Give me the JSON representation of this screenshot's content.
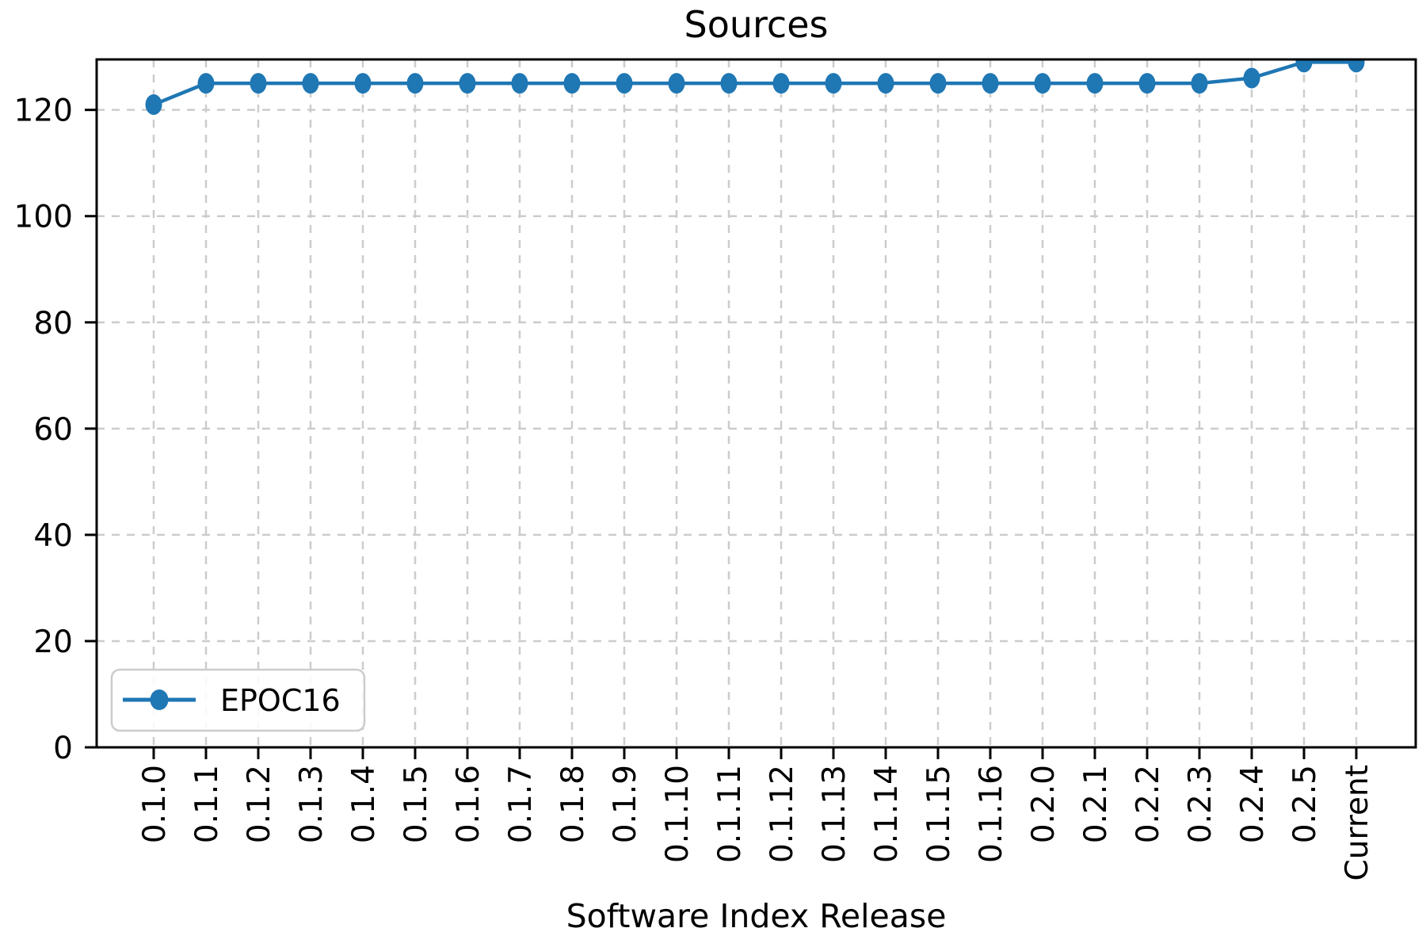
{
  "chart_data": {
    "type": "line",
    "title": "Sources",
    "xlabel": "Software Index Release",
    "ylabel": "",
    "categories": [
      "0.1.0",
      "0.1.1",
      "0.1.2",
      "0.1.3",
      "0.1.4",
      "0.1.5",
      "0.1.6",
      "0.1.7",
      "0.1.8",
      "0.1.9",
      "0.1.10",
      "0.1.11",
      "0.1.12",
      "0.1.13",
      "0.1.14",
      "0.1.15",
      "0.1.16",
      "0.2.0",
      "0.2.1",
      "0.2.2",
      "0.2.3",
      "0.2.4",
      "0.2.5",
      "Current"
    ],
    "series": [
      {
        "name": "EPOC16",
        "values": [
          121,
          125,
          125,
          125,
          125,
          125,
          125,
          125,
          125,
          125,
          125,
          125,
          125,
          125,
          125,
          125,
          125,
          125,
          125,
          125,
          125,
          126,
          129,
          129
        ]
      }
    ],
    "yticks": [
      0,
      20,
      40,
      60,
      80,
      100,
      120
    ],
    "ylim": [
      0,
      129.5
    ],
    "grid": true,
    "grid_style": "dashed",
    "legend_position": "lower-left",
    "legend_entries": [
      "EPOC16"
    ]
  },
  "colors": {
    "series_blue": "#1f77b4",
    "grid": "#cccccc",
    "spine": "#000000",
    "background": "#ffffff",
    "legend_border": "#cccccc"
  }
}
